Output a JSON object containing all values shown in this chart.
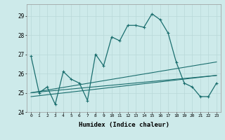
{
  "xlabel": "Humidex (Indice chaleur)",
  "bg_color": "#cdeaea",
  "grid_color": "#b8d8d8",
  "line_color": "#1a6e6e",
  "xlim": [
    -0.5,
    23.5
  ],
  "ylim": [
    24.0,
    29.6
  ],
  "yticks": [
    24,
    25,
    26,
    27,
    28,
    29
  ],
  "xticks": [
    0,
    1,
    2,
    3,
    4,
    5,
    6,
    7,
    8,
    9,
    10,
    11,
    12,
    13,
    14,
    15,
    16,
    17,
    18,
    19,
    20,
    21,
    22,
    23
  ],
  "main_line": [
    26.9,
    25.0,
    25.3,
    24.4,
    26.1,
    25.7,
    25.5,
    24.6,
    27.0,
    26.4,
    27.9,
    27.7,
    28.5,
    28.5,
    28.4,
    29.1,
    28.8,
    28.1,
    26.6,
    25.5,
    25.3,
    24.8,
    24.8,
    25.5
  ],
  "upper_line_x": [
    0,
    23
  ],
  "upper_line_y": [
    25.0,
    26.6
  ],
  "mid_line_x": [
    0,
    23
  ],
  "mid_line_y": [
    25.0,
    25.9
  ],
  "lower_line_x": [
    0,
    23
  ],
  "lower_line_y": [
    24.8,
    25.9
  ]
}
